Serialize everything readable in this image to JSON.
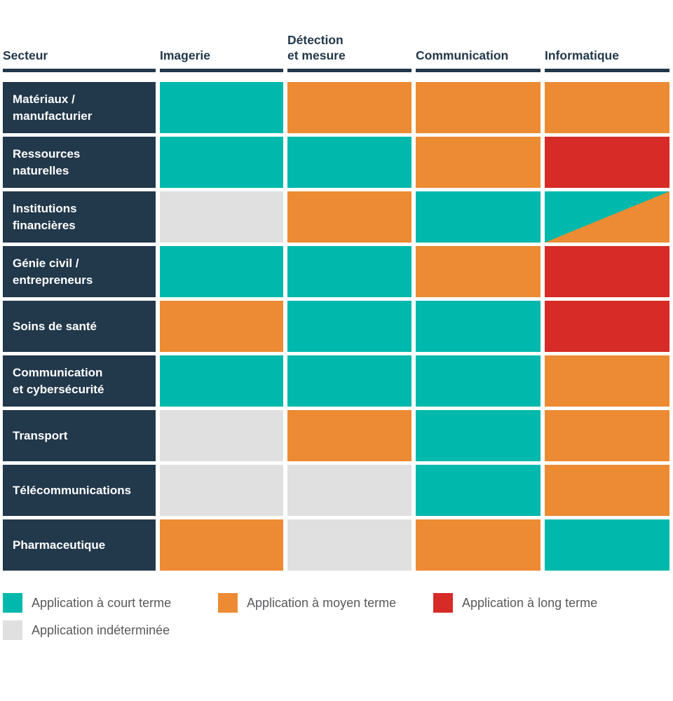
{
  "header": {
    "sector_label": "Secteur"
  },
  "colors": {
    "court": "#00B9AC",
    "moyen": "#EC8B33",
    "long": "#D62B27",
    "indeterminee": "#E0E0E0",
    "sector_bg": "#22384B",
    "header_text": "#22384B",
    "legend_text": "#58595B",
    "background": "#FFFFFF"
  },
  "chart_data": {
    "type": "heatmap",
    "columns": [
      "Imagerie",
      "Détection\net mesure",
      "Communication",
      "Informatique"
    ],
    "rows": [
      {
        "label": "Matériaux /\nmanufacturier",
        "values": [
          "court",
          "moyen",
          "moyen",
          "moyen"
        ]
      },
      {
        "label": "Ressources\nnaturelles",
        "values": [
          "court",
          "court",
          "moyen",
          "long"
        ]
      },
      {
        "label": "Institutions\nfinancières",
        "values": [
          "indeterminee",
          "moyen",
          "court",
          "court+moyen"
        ]
      },
      {
        "label": "Génie civil /\nentrepreneurs",
        "values": [
          "court",
          "court",
          "moyen",
          "long"
        ]
      },
      {
        "label": "Soins de santé",
        "values": [
          "moyen",
          "court",
          "court",
          "long"
        ]
      },
      {
        "label": "Communication\net cybersécurité",
        "values": [
          "court",
          "court",
          "court",
          "moyen"
        ]
      },
      {
        "label": "Transport",
        "values": [
          "indeterminee",
          "moyen",
          "court",
          "moyen"
        ]
      },
      {
        "label": "Télécommunications",
        "values": [
          "indeterminee",
          "indeterminee",
          "court",
          "moyen"
        ]
      },
      {
        "label": "Pharmaceutique",
        "values": [
          "moyen",
          "indeterminee",
          "moyen",
          "court"
        ]
      }
    ],
    "legend": [
      {
        "key": "court",
        "label": "Application à court terme",
        "color": "#00B9AC"
      },
      {
        "key": "moyen",
        "label": "Application à moyen terme",
        "color": "#EC8B33"
      },
      {
        "key": "long",
        "label": "Application à long terme",
        "color": "#D62B27"
      },
      {
        "key": "indeterminee",
        "label": "Application indéterminée",
        "color": "#E0E0E0"
      }
    ],
    "split_cell": {
      "row": "Institutions financières",
      "column": "Informatique",
      "top_left": "court",
      "bottom_right": "moyen"
    }
  }
}
